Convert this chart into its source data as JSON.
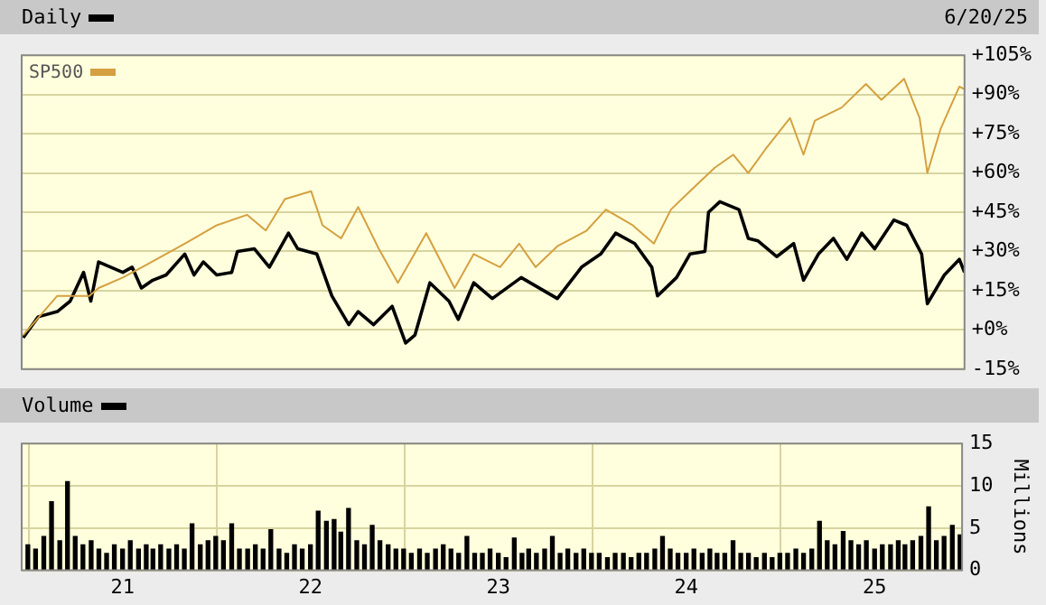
{
  "chart_data": [
    {
      "type": "line",
      "annotations": [
        "6/20/25"
      ],
      "xlim": [
        "2020-06-19",
        "2025-06-20"
      ],
      "xticks": [
        {
          "value": "2021-01-01",
          "label": null
        },
        {
          "value": "2022-01-01",
          "label": null
        },
        {
          "value": "2023-01-01",
          "label": null
        },
        {
          "value": "2024-01-01",
          "label": null
        },
        {
          "value": "2025-01-01",
          "label": null
        }
      ],
      "ylim": [
        -15,
        105
      ],
      "yticks": [
        {
          "value": -15,
          "label": "-15%"
        },
        {
          "value": 0,
          "label": "+0%"
        },
        {
          "value": 15,
          "label": "+15%"
        },
        {
          "value": 30,
          "label": "+30%"
        },
        {
          "value": 45,
          "label": "+45%"
        },
        {
          "value": 60,
          "label": "+60%"
        },
        {
          "value": 75,
          "label": "+75%"
        },
        {
          "value": 90,
          "label": "+90%"
        },
        {
          "value": 105,
          "label": "+105%"
        }
      ],
      "tick_labels": "y",
      "grid": true,
      "legend": "top left",
      "line_style": "solid",
      "series": [
        {
          "name": "Daily",
          "color": "#000000",
          "x": [
            "2020-06-22",
            "2020-07-21",
            "2020-08-27",
            "2020-09-21",
            "2020-10-17",
            "2020-10-31",
            "2020-11-15",
            "2021-01-01",
            "2021-01-19",
            "2021-02-06",
            "2021-02-28",
            "2021-03-26",
            "2021-05-01",
            "2021-05-19",
            "2021-06-06",
            "2021-07-02",
            "2021-07-31",
            "2021-08-11",
            "2021-09-13",
            "2021-10-12",
            "2021-11-18",
            "2021-12-06",
            "2022-01-12",
            "2022-02-10",
            "2022-03-15",
            "2022-04-02",
            "2022-05-02",
            "2022-06-07",
            "2022-07-03",
            "2022-07-21",
            "2022-08-19",
            "2022-09-25",
            "2022-10-13",
            "2022-11-12",
            "2022-12-18",
            "2023-02-12",
            "2023-04-23",
            "2023-06-09",
            "2023-07-16",
            "2023-08-14",
            "2023-09-20",
            "2023-10-23",
            "2023-11-03",
            "2023-12-10",
            "2024-01-05",
            "2024-02-03",
            "2024-02-10",
            "2024-03-03",
            "2024-04-09",
            "2024-04-27",
            "2024-05-16",
            "2024-06-21",
            "2024-07-24",
            "2024-08-12",
            "2024-09-10",
            "2024-10-09",
            "2024-11-04",
            "2024-12-03",
            "2024-12-28",
            "2025-02-03",
            "2025-02-28",
            "2025-03-29",
            "2025-04-09",
            "2025-05-12",
            "2025-06-10",
            "2025-06-20"
          ],
          "values": [
            -3,
            5,
            7,
            11,
            22,
            11,
            26,
            22,
            24,
            16,
            19,
            21,
            29,
            21,
            26,
            21,
            22,
            30,
            31,
            24,
            37,
            31,
            29,
            13,
            2,
            7,
            2,
            9,
            -5,
            -2,
            18,
            11,
            4,
            18,
            12,
            20,
            12,
            24,
            29,
            37,
            33,
            24,
            13,
            20,
            29,
            30,
            45,
            49,
            46,
            35,
            34,
            28,
            33,
            19,
            29,
            35,
            27,
            37,
            31,
            42,
            40,
            29,
            10,
            21,
            27,
            22
          ]
        },
        {
          "name": "SP500",
          "color": "#d4a040",
          "x": [
            "2020-06-22",
            "2020-08-27",
            "2020-10-28",
            "2020-11-15",
            "2021-01-01",
            "2021-02-17",
            "2021-05-01",
            "2021-07-02",
            "2021-08-30",
            "2021-10-05",
            "2021-11-11",
            "2022-01-01",
            "2022-01-23",
            "2022-02-28",
            "2022-04-02",
            "2022-05-12",
            "2022-06-18",
            "2022-08-12",
            "2022-10-06",
            "2022-11-12",
            "2023-01-02",
            "2023-02-08",
            "2023-03-12",
            "2023-04-23",
            "2023-06-19",
            "2023-07-26",
            "2023-09-16",
            "2023-10-27",
            "2023-11-29",
            "2024-01-05",
            "2024-02-22",
            "2024-03-29",
            "2024-04-27",
            "2024-05-30",
            "2024-07-17",
            "2024-08-12",
            "2024-09-03",
            "2024-10-25",
            "2024-12-11",
            "2025-01-10",
            "2025-02-23",
            "2025-03-25",
            "2025-04-09",
            "2025-05-05",
            "2025-06-10",
            "2025-06-20"
          ],
          "values": [
            -2,
            13,
            13,
            16,
            20,
            25,
            33,
            40,
            44,
            38,
            50,
            53,
            40,
            35,
            47,
            31,
            18,
            37,
            16,
            29,
            24,
            33,
            24,
            32,
            38,
            46,
            40,
            33,
            46,
            53,
            62,
            67,
            60,
            69,
            81,
            67,
            80,
            85,
            94,
            88,
            96,
            81,
            60,
            77,
            93,
            92
          ]
        }
      ]
    },
    {
      "type": "bar",
      "ylabel": "Millions",
      "xlim": [
        "2020-06-19",
        "2025-06-20"
      ],
      "xticks": [
        {
          "value": "2021-01-01",
          "label": "21"
        },
        {
          "value": "2022-01-01",
          "label": "22"
        },
        {
          "value": "2023-01-01",
          "label": "23"
        },
        {
          "value": "2024-01-01",
          "label": "24"
        },
        {
          "value": "2025-01-01",
          "label": "25"
        }
      ],
      "ylim": [
        0,
        15
      ],
      "yticks": [
        0,
        5,
        10,
        15
      ],
      "grid": true,
      "legend": "top left",
      "series": [
        {
          "name": "Volume",
          "color": "#000000",
          "x": [
            "2020-07-01",
            "2020-07-16",
            "2020-08-01",
            "2020-08-16",
            "2020-09-01",
            "2020-09-16",
            "2020-10-01",
            "2020-10-16",
            "2020-11-01",
            "2020-11-16",
            "2020-12-01",
            "2020-12-16",
            "2021-01-01",
            "2021-01-16",
            "2021-02-01",
            "2021-02-16",
            "2021-03-01",
            "2021-03-16",
            "2021-04-01",
            "2021-04-16",
            "2021-05-01",
            "2021-05-16",
            "2021-06-01",
            "2021-06-16",
            "2021-07-01",
            "2021-07-16",
            "2021-08-01",
            "2021-08-16",
            "2021-09-01",
            "2021-09-16",
            "2021-10-01",
            "2021-10-16",
            "2021-11-01",
            "2021-11-16",
            "2021-12-01",
            "2021-12-16",
            "2022-01-01",
            "2022-01-16",
            "2022-02-01",
            "2022-02-16",
            "2022-03-01",
            "2022-03-16",
            "2022-04-01",
            "2022-04-16",
            "2022-05-01",
            "2022-05-16",
            "2022-06-01",
            "2022-06-16",
            "2022-07-01",
            "2022-07-16",
            "2022-08-01",
            "2022-08-16",
            "2022-09-01",
            "2022-09-16",
            "2022-10-01",
            "2022-10-16",
            "2022-11-01",
            "2022-11-16",
            "2022-12-01",
            "2022-12-16",
            "2023-01-01",
            "2023-01-16",
            "2023-02-01",
            "2023-02-16",
            "2023-03-01",
            "2023-03-16",
            "2023-04-01",
            "2023-04-16",
            "2023-05-01",
            "2023-05-16",
            "2023-06-01",
            "2023-06-16",
            "2023-07-01",
            "2023-07-16",
            "2023-08-01",
            "2023-08-16",
            "2023-09-01",
            "2023-09-16",
            "2023-10-01",
            "2023-10-16",
            "2023-11-01",
            "2023-11-16",
            "2023-12-01",
            "2023-12-16",
            "2024-01-01",
            "2024-01-16",
            "2024-02-01",
            "2024-02-16",
            "2024-03-01",
            "2024-03-16",
            "2024-04-01",
            "2024-04-16",
            "2024-05-01",
            "2024-05-16",
            "2024-06-01",
            "2024-06-16",
            "2024-07-01",
            "2024-07-16",
            "2024-08-01",
            "2024-08-16",
            "2024-09-01",
            "2024-09-16",
            "2024-10-01",
            "2024-10-16",
            "2024-11-01",
            "2024-11-16",
            "2024-12-01",
            "2024-12-16",
            "2025-01-01",
            "2025-01-16",
            "2025-02-01",
            "2025-02-16",
            "2025-03-01",
            "2025-03-16",
            "2025-04-01",
            "2025-04-16",
            "2025-05-01",
            "2025-05-16",
            "2025-06-01",
            "2025-06-16"
          ],
          "values": [
            3,
            2.5,
            4,
            8.1,
            3.5,
            10.5,
            4,
            3,
            3.5,
            2.5,
            2,
            3,
            2.5,
            3.5,
            2.5,
            3,
            2.5,
            3,
            2.5,
            3,
            2.5,
            5.5,
            3,
            3.5,
            4,
            3.5,
            5.5,
            2.5,
            2.5,
            3,
            2.5,
            4.8,
            2.5,
            2,
            3,
            2.5,
            3,
            7,
            5.8,
            6,
            4.5,
            7.3,
            3.5,
            3,
            5.3,
            3.5,
            3,
            2.5,
            2.5,
            2,
            2.5,
            2,
            2.5,
            3,
            2.5,
            2,
            4,
            2,
            2,
            2.5,
            2,
            1.5,
            3.8,
            2,
            2.5,
            2,
            2.5,
            4,
            2,
            2.5,
            2,
            2.5,
            2,
            2,
            1.5,
            2,
            2,
            1.5,
            2,
            2,
            2.5,
            4,
            2.5,
            2,
            2,
            2.5,
            2,
            2.5,
            2,
            2,
            3.5,
            2,
            2,
            1.5,
            2,
            1.5,
            2,
            2,
            2.5,
            2,
            2.5,
            5.8,
            3.5,
            3,
            4.6,
            3.5,
            3,
            3.5,
            2.5,
            3,
            3,
            3.5,
            3,
            3.5,
            4,
            7.5,
            3.5,
            4,
            5.3,
            4.2
          ]
        }
      ]
    }
  ]
}
